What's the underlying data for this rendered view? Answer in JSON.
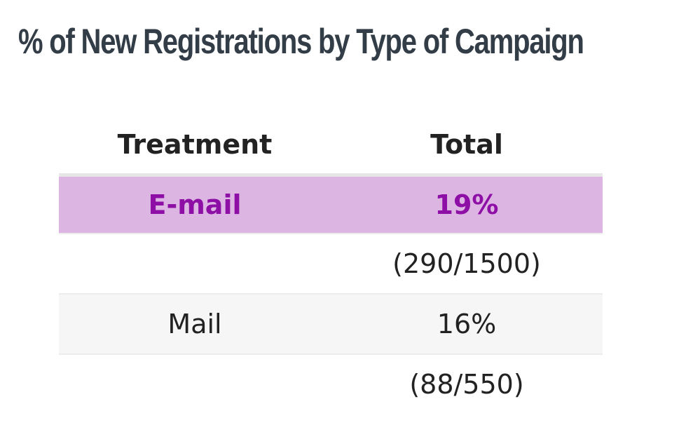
{
  "title": "% of New Registrations by Type of Campaign",
  "table": {
    "headers": [
      "Treatment",
      "Total"
    ],
    "rows": [
      {
        "treatment": "E-mail",
        "total": "19%"
      },
      {
        "treatment": "",
        "total": "(290/1500)"
      },
      {
        "treatment": "Mail",
        "total": "16%"
      },
      {
        "treatment": "",
        "total": "(88/550)"
      }
    ]
  },
  "colors": {
    "title": "#333d47",
    "highlight_background": "#dcb5e3",
    "highlight_text": "#8e0fa6",
    "shaded_row": "#f6f6f6"
  }
}
